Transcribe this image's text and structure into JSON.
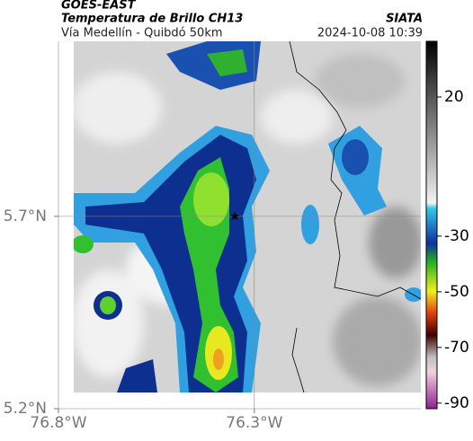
{
  "header": {
    "source": "GOES-EAST",
    "title": "Temperatura de Brillo CH13",
    "route": "Vía Medellín - Quibdó 50km",
    "org": "SIATA",
    "datetime": "2024-10-08 10:39"
  },
  "chart_data": {
    "type": "map",
    "xlim": [
      -76.8,
      -75.875
    ],
    "ylim": [
      5.2,
      6.155
    ],
    "xticks": [
      {
        "value": -76.8,
        "label": "76.8°W"
      },
      {
        "value": -76.3,
        "label": "76.3°W"
      }
    ],
    "yticks": [
      {
        "value": 5.2,
        "label": "5.2°N"
      },
      {
        "value": 5.7,
        "label": "5.7°N"
      }
    ],
    "grid": true,
    "marker": {
      "x": -76.35,
      "y": 5.7
    },
    "colorbar": {
      "lim": [
        -92,
        40
      ],
      "ticks": [
        20,
        -30,
        -50,
        -70,
        -90
      ]
    }
  }
}
